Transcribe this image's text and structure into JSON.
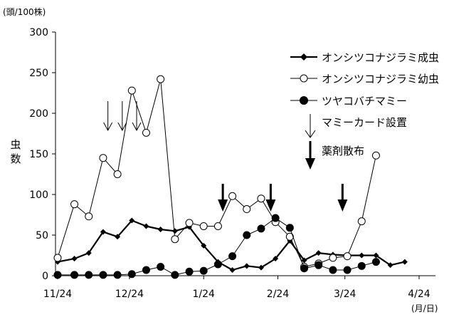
{
  "chart_data": {
    "type": "line",
    "y_unit_label": "(頭/100株)",
    "ylabel": "虫数",
    "x_unit_label": "(月/日)",
    "ylim": [
      0,
      300
    ],
    "yticks": [
      0,
      50,
      100,
      150,
      200,
      250,
      300
    ],
    "x_ticks": [
      {
        "label": "11/24",
        "x": 0
      },
      {
        "label": "12/24",
        "x": 30
      },
      {
        "label": "1/24",
        "x": 61
      },
      {
        "label": "2/24",
        "x": 92
      },
      {
        "label": "3/24",
        "x": 120
      },
      {
        "label": "4/24",
        "x": 151
      }
    ],
    "xlim": [
      0,
      151
    ],
    "series": [
      {
        "name": "オンシツコナジラミ成虫",
        "marker": "diamond",
        "color": "#000000",
        "stroke_width": 2.2,
        "points": [
          [
            0,
            17
          ],
          [
            7,
            21
          ],
          [
            13,
            28
          ],
          [
            19,
            54
          ],
          [
            25,
            48
          ],
          [
            31,
            68
          ],
          [
            37,
            61
          ],
          [
            43,
            57
          ],
          [
            49,
            55
          ],
          [
            55,
            60
          ],
          [
            61,
            37
          ],
          [
            67,
            17
          ],
          [
            73,
            7
          ],
          [
            79,
            12
          ],
          [
            85,
            10
          ],
          [
            91,
            21
          ],
          [
            97,
            43
          ],
          [
            103,
            19
          ],
          [
            109,
            28
          ],
          [
            115,
            26
          ],
          [
            121,
            25
          ],
          [
            127,
            25
          ],
          [
            133,
            25
          ],
          [
            139,
            13
          ],
          [
            145,
            17
          ]
        ]
      },
      {
        "name": "オンシツコナジラミ幼虫",
        "marker": "open-circle",
        "color": "#000000",
        "stroke_width": 1,
        "points": [
          [
            0,
            22
          ],
          [
            7,
            88
          ],
          [
            13,
            73
          ],
          [
            19,
            145
          ],
          [
            25,
            125
          ],
          [
            31,
            228
          ],
          [
            37,
            176
          ],
          [
            43,
            242
          ],
          [
            49,
            45
          ],
          [
            55,
            65
          ],
          [
            61,
            61
          ],
          [
            67,
            61
          ],
          [
            73,
            98
          ],
          [
            79,
            82
          ],
          [
            85,
            95
          ],
          [
            91,
            66
          ],
          [
            97,
            48
          ],
          [
            103,
            11
          ],
          [
            109,
            15
          ],
          [
            115,
            22
          ],
          [
            121,
            24
          ],
          [
            127,
            67
          ],
          [
            133,
            148
          ]
        ]
      },
      {
        "name": "ツヤコバチマミー",
        "marker": "filled-circle",
        "color": "#000000",
        "stroke_width": 1,
        "points": [
          [
            0,
            1
          ],
          [
            7,
            1
          ],
          [
            13,
            1
          ],
          [
            19,
            1
          ],
          [
            25,
            1
          ],
          [
            31,
            2
          ],
          [
            37,
            7
          ],
          [
            43,
            11
          ],
          [
            49,
            1
          ],
          [
            55,
            5
          ],
          [
            61,
            6
          ],
          [
            67,
            14
          ],
          [
            73,
            24
          ],
          [
            79,
            50
          ],
          [
            85,
            58
          ],
          [
            91,
            71
          ],
          [
            97,
            59
          ],
          [
            103,
            9
          ],
          [
            109,
            13
          ],
          [
            115,
            7
          ],
          [
            121,
            7
          ],
          [
            127,
            12
          ],
          [
            133,
            17
          ]
        ]
      }
    ],
    "marker_labels": {
      "card": "マミーカード設置",
      "spray": "薬剤散布"
    },
    "markers": {
      "card_x": [
        21,
        27,
        33
      ],
      "spray_x": [
        69,
        89,
        119
      ]
    }
  }
}
